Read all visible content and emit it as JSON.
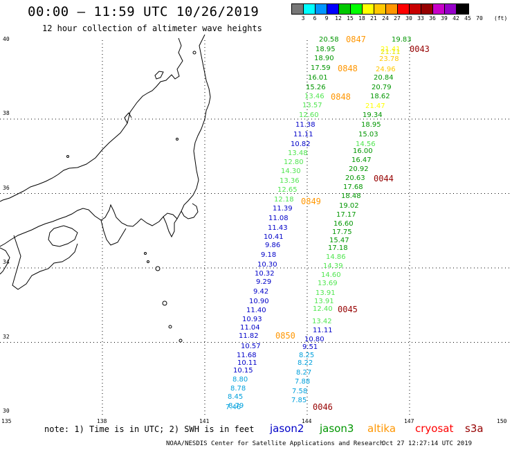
{
  "header": {
    "title": "00:00 – 11:59 UTC 10/26/2019",
    "subtitle": "12 hour collection of altimeter wave heights"
  },
  "colorbar": {
    "colors": [
      "#777777",
      "#00ffff",
      "#0096ff",
      "#0000ff",
      "#00c800",
      "#00ff00",
      "#ffff00",
      "#ffc800",
      "#ff9600",
      "#ff0000",
      "#c80000",
      "#960000",
      "#c800c8",
      "#9600c8",
      "#000000"
    ],
    "labels": [
      "3",
      "6",
      "9",
      "12",
      "15",
      "18",
      "21",
      "24",
      "27",
      "30",
      "33",
      "36",
      "39",
      "42",
      "45",
      "70"
    ],
    "unit": "(ft)"
  },
  "axes": {
    "lat_labels": [
      "40",
      "38",
      "36",
      "34",
      "32",
      "30"
    ],
    "lon_labels": [
      "135",
      "138",
      "141",
      "144",
      "147",
      "150"
    ]
  },
  "observations": [
    {
      "v": "20.58",
      "c": "#009600"
    },
    {
      "v": "19.83",
      "c": "#009600"
    },
    {
      "v": "18.95",
      "c": "#009600"
    },
    {
      "v": "21.41",
      "c": "#ffff00"
    },
    {
      "v": "21.11",
      "c": "#e6e600"
    },
    {
      "v": "18.90",
      "c": "#009600"
    },
    {
      "v": "23.78",
      "c": "#ffc800"
    },
    {
      "v": "17.59",
      "c": "#009600"
    },
    {
      "v": "24.96",
      "c": "#ffc800"
    },
    {
      "v": "16.01",
      "c": "#009600"
    },
    {
      "v": "20.84",
      "c": "#009600"
    },
    {
      "v": "15.26",
      "c": "#009600"
    },
    {
      "v": "20.79",
      "c": "#009600"
    },
    {
      "v": "13.46",
      "c": "#50e650"
    },
    {
      "v": "18.62",
      "c": "#009600"
    },
    {
      "v": "13.57",
      "c": "#50e650"
    },
    {
      "v": "21.47",
      "c": "#ffff00"
    },
    {
      "v": "12.60",
      "c": "#50e650"
    },
    {
      "v": "19.34",
      "c": "#009600"
    },
    {
      "v": "11.38",
      "c": "#0000c8"
    },
    {
      "v": "18.95",
      "c": "#009600"
    },
    {
      "v": "11.11",
      "c": "#0000c8"
    },
    {
      "v": "15.03",
      "c": "#009600"
    },
    {
      "v": "10.82",
      "c": "#0000c8"
    },
    {
      "v": "14.56",
      "c": "#50e650"
    },
    {
      "v": "13.48",
      "c": "#50e650"
    },
    {
      "v": "16.00",
      "c": "#009600"
    },
    {
      "v": "12.80",
      "c": "#50e650"
    },
    {
      "v": "16.47",
      "c": "#009600"
    },
    {
      "v": "14.30",
      "c": "#50e650"
    },
    {
      "v": "20.92",
      "c": "#009600"
    },
    {
      "v": "13.36",
      "c": "#50e650"
    },
    {
      "v": "20.63",
      "c": "#009600"
    },
    {
      "v": "12.65",
      "c": "#50e650"
    },
    {
      "v": "17.68",
      "c": "#009600"
    },
    {
      "v": "12.18",
      "c": "#50e650"
    },
    {
      "v": "18.48",
      "c": "#009600"
    },
    {
      "v": "11.39",
      "c": "#0000c8"
    },
    {
      "v": "19.02",
      "c": "#009600"
    },
    {
      "v": "11.08",
      "c": "#0000c8"
    },
    {
      "v": "17.17",
      "c": "#009600"
    },
    {
      "v": "11.43",
      "c": "#0000c8"
    },
    {
      "v": "16.60",
      "c": "#009600"
    },
    {
      "v": "10.41",
      "c": "#0000c8"
    },
    {
      "v": "17.75",
      "c": "#009600"
    },
    {
      "v": "9.86",
      "c": "#0000c8"
    },
    {
      "v": "15.47",
      "c": "#009600"
    },
    {
      "v": "9.18",
      "c": "#0000c8"
    },
    {
      "v": "17.18",
      "c": "#009600"
    },
    {
      "v": "10.30",
      "c": "#0000c8"
    },
    {
      "v": "14.86",
      "c": "#50e650"
    },
    {
      "v": "10.32",
      "c": "#0000c8"
    },
    {
      "v": "14.39",
      "c": "#50e650"
    },
    {
      "v": "9.29",
      "c": "#0000c8"
    },
    {
      "v": "14.60",
      "c": "#50e650"
    },
    {
      "v": "9.42",
      "c": "#0000c8"
    },
    {
      "v": "13.69",
      "c": "#50e650"
    },
    {
      "v": "10.90",
      "c": "#0000c8"
    },
    {
      "v": "13.91",
      "c": "#50e650"
    },
    {
      "v": "11.40",
      "c": "#0000c8"
    },
    {
      "v": "13.91",
      "c": "#50e650"
    },
    {
      "v": "10.93",
      "c": "#0000c8"
    },
    {
      "v": "12.40",
      "c": "#50e650"
    },
    {
      "v": "11.04",
      "c": "#0000c8"
    },
    {
      "v": "13.42",
      "c": "#50e650"
    },
    {
      "v": "11.82",
      "c": "#0000c8"
    },
    {
      "v": "11.11",
      "c": "#0000c8"
    },
    {
      "v": "10.57",
      "c": "#0000c8"
    },
    {
      "v": "10.80",
      "c": "#0000c8"
    },
    {
      "v": "11.68",
      "c": "#0000c8"
    },
    {
      "v": "9.51",
      "c": "#0000c8"
    },
    {
      "v": "10.11",
      "c": "#0000c8"
    },
    {
      "v": "8.25",
      "c": "#00a0dc"
    },
    {
      "v": "10.15",
      "c": "#0000c8"
    },
    {
      "v": "8.22",
      "c": "#00a0dc"
    },
    {
      "v": "8.80",
      "c": "#00a0dc"
    },
    {
      "v": "8.27",
      "c": "#00a0dc"
    },
    {
      "v": "8.78",
      "c": "#00a0dc"
    },
    {
      "v": "7.88",
      "c": "#00a0dc"
    },
    {
      "v": "8.45",
      "c": "#00a0dc"
    },
    {
      "v": "7.58",
      "c": "#00a0dc"
    },
    {
      "v": "8.79",
      "c": "#00a0dc"
    },
    {
      "v": "7.85",
      "c": "#00a0dc"
    },
    {
      "v": "7.46",
      "c": "#00a0dc"
    }
  ],
  "time_labels": [
    {
      "t": "0847",
      "c": "#ff9600"
    },
    {
      "t": "0043",
      "c": "#960000"
    },
    {
      "t": "0848",
      "c": "#ff9600"
    },
    {
      "t": "0848",
      "c": "#ff9600"
    },
    {
      "t": "0044",
      "c": "#960000"
    },
    {
      "t": "0849",
      "c": "#ff9600"
    },
    {
      "t": "0045",
      "c": "#960000"
    },
    {
      "t": "0850",
      "c": "#ff9600"
    },
    {
      "t": "0046",
      "c": "#960000"
    }
  ],
  "footer": {
    "note": "note: 1) Time is in UTC; 2) SWH is in feet",
    "satellites": [
      {
        "name": "jason2",
        "color": "#0000c8"
      },
      {
        "name": "jason3",
        "color": "#009600"
      },
      {
        "name": "altika",
        "color": "#ff9600"
      },
      {
        "name": "cryosat",
        "color": "#ff0000"
      },
      {
        "name": "s3a",
        "color": "#960000"
      }
    ],
    "credit": "NOAA/NESDIS Center for Satellite Applications and Research",
    "timestamp": "Oct 27 12:27:14 UTC 2019"
  }
}
